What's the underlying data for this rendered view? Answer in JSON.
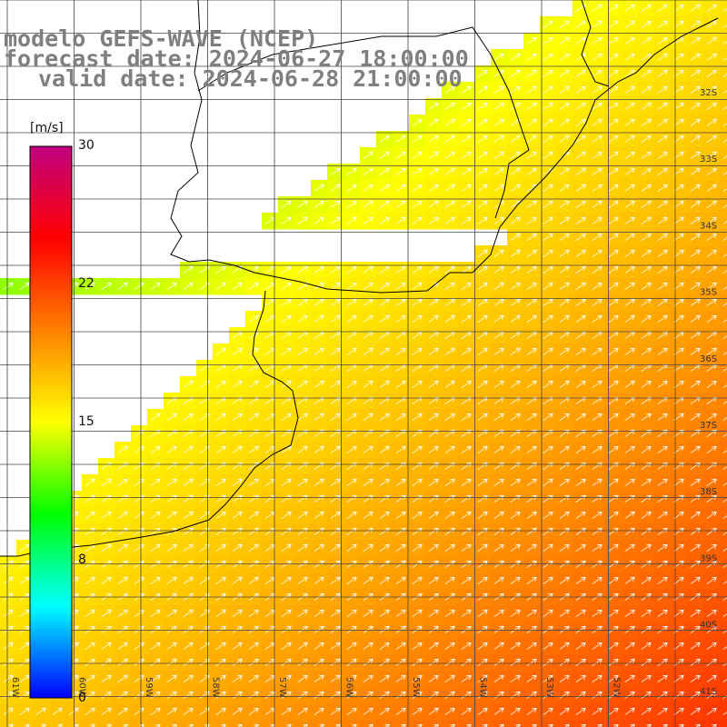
{
  "title": {
    "model": "modelo GEFS-WAVE (NCEP)",
    "forecast_date": "forecast date: 2024-06-27 18:00:00",
    "valid_date": "valid date: 2024-06-28 21:00:00"
  },
  "colorbar": {
    "unit": "[m/s]",
    "ticks": [
      "0",
      "8",
      "15",
      "22",
      "30"
    ],
    "range": [
      0,
      30
    ],
    "colors": [
      "#0000ff",
      "#00ffff",
      "#00ff00",
      "#ffff00",
      "#ff8000",
      "#ff0000",
      "#c0007f"
    ]
  },
  "axes": {
    "lon_labels": [
      "61W",
      "60W",
      "59W",
      "58W",
      "57W",
      "56W",
      "55W",
      "54W",
      "53W",
      "52W"
    ],
    "lat_labels": [
      "32S",
      "33S",
      "34S",
      "35S",
      "36S",
      "37S",
      "38S",
      "39S",
      "40S",
      "41S"
    ]
  },
  "colors": {
    "land": "#ffffff",
    "coast": "#000000",
    "grid": "#444444",
    "arrow": "#ffffff",
    "title": "#7f7f7f"
  }
}
